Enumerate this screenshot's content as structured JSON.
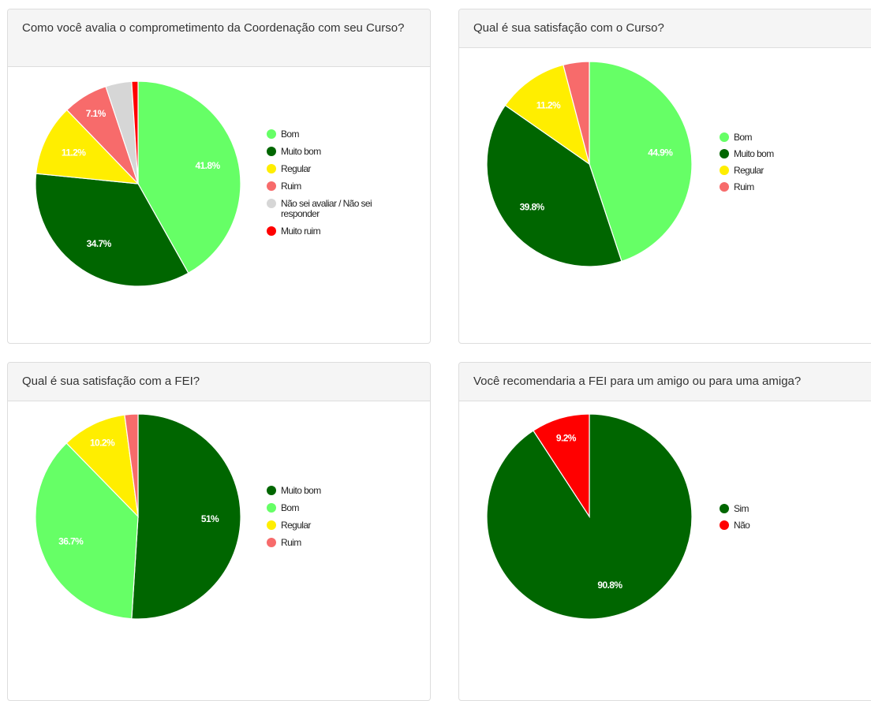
{
  "charts": [
    {
      "title": "Como você avalia o comprometimento da Coordenação com seu Curso?",
      "chart_data": {
        "type": "pie",
        "title": "Como você avalia o comprometimento da Coordenação com seu Curso?",
        "categories": [
          "Bom",
          "Muito bom",
          "Regular",
          "Ruim",
          "Não sei avaliar / Não sei responder",
          "Muito ruim"
        ],
        "values": [
          41.8,
          34.7,
          11.2,
          7.1,
          4.1,
          1.0
        ],
        "labels": [
          "41.8%",
          "34.7%",
          "11.2%",
          "7.1%",
          "",
          ""
        ],
        "legend_lines": [
          [
            "Bom"
          ],
          [
            "Muito bom"
          ],
          [
            "Regular"
          ],
          [
            "Ruim"
          ],
          [
            "Não sei avaliar / Não sei",
            "responder"
          ],
          [
            "Muito ruim"
          ]
        ],
        "colors": [
          "#66ff66",
          "#006600",
          "#ffee00",
          "#f76b6b",
          "#d6d6d6",
          "#ff0000"
        ],
        "legend_position": "right"
      }
    },
    {
      "title": "Qual é sua satisfação com o Curso?",
      "chart_data": {
        "type": "pie",
        "title": "Qual é sua satisfação com o Curso?",
        "categories": [
          "Bom",
          "Muito bom",
          "Regular",
          "Ruim"
        ],
        "values": [
          44.9,
          39.8,
          11.2,
          4.1
        ],
        "labels": [
          "44.9%",
          "39.8%",
          "11.2%",
          ""
        ],
        "legend_lines": [
          [
            "Bom"
          ],
          [
            "Muito bom"
          ],
          [
            "Regular"
          ],
          [
            "Ruim"
          ]
        ],
        "colors": [
          "#66ff66",
          "#006600",
          "#ffee00",
          "#f76b6b"
        ],
        "legend_position": "right"
      }
    },
    {
      "title": "Qual é sua satisfação com a FEI?",
      "chart_data": {
        "type": "pie",
        "title": "Qual é sua satisfação com a FEI?",
        "categories": [
          "Muito bom",
          "Bom",
          "Regular",
          "Ruim"
        ],
        "values": [
          51,
          36.7,
          10.2,
          2.1
        ],
        "labels": [
          "51%",
          "36.7%",
          "10.2%",
          ""
        ],
        "legend_lines": [
          [
            "Muito bom"
          ],
          [
            "Bom"
          ],
          [
            "Regular"
          ],
          [
            "Ruim"
          ]
        ],
        "colors": [
          "#006600",
          "#66ff66",
          "#ffee00",
          "#f76b6b"
        ],
        "legend_position": "right"
      }
    },
    {
      "title": "Você recomendaria a FEI para um amigo ou para uma amiga?",
      "chart_data": {
        "type": "pie",
        "title": "Você recomendaria a FEI para um amigo ou para uma amiga?",
        "categories": [
          "Sim",
          "Não"
        ],
        "values": [
          90.8,
          9.2
        ],
        "labels": [
          "90.8%",
          "9.2%"
        ],
        "legend_lines": [
          [
            "Sim"
          ],
          [
            "Não"
          ]
        ],
        "colors": [
          "#006600",
          "#ff0000"
        ],
        "legend_position": "right"
      }
    }
  ]
}
